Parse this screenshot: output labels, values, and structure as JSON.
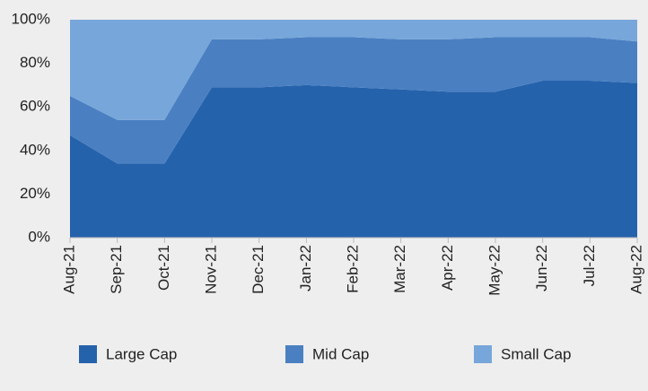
{
  "chart_data": {
    "type": "stacked_area",
    "categories": [
      "Aug-21",
      "Sep-21",
      "Oct-21",
      "Nov-21",
      "Dec-21",
      "Jan-22",
      "Feb-22",
      "Mar-22",
      "Apr-22",
      "May-22",
      "Jun-22",
      "Jul-22",
      "Aug-22"
    ],
    "series": [
      {
        "name": "Large Cap",
        "color": "#2562ac",
        "values": [
          47,
          34,
          34,
          69,
          69,
          70,
          69,
          68,
          67,
          67,
          72,
          72,
          71
        ]
      },
      {
        "name": "Mid Cap",
        "color": "#4a80c2",
        "values": [
          18,
          20,
          20,
          22,
          22,
          22,
          23,
          23,
          24,
          25,
          20,
          20,
          19
        ]
      },
      {
        "name": "Small  Cap",
        "color": "#77a6da",
        "values": [
          35,
          46,
          46,
          9,
          9,
          8,
          8,
          9,
          9,
          8,
          8,
          8,
          10
        ]
      }
    ],
    "ylim": [
      0,
      100
    ],
    "yticks": [
      {
        "value": 0,
        "label": "0%"
      },
      {
        "value": 20,
        "label": "20%"
      },
      {
        "value": 40,
        "label": "40%"
      },
      {
        "value": 60,
        "label": "60%"
      },
      {
        "value": 80,
        "label": "80%"
      },
      {
        "value": 100,
        "label": "100%"
      }
    ]
  }
}
